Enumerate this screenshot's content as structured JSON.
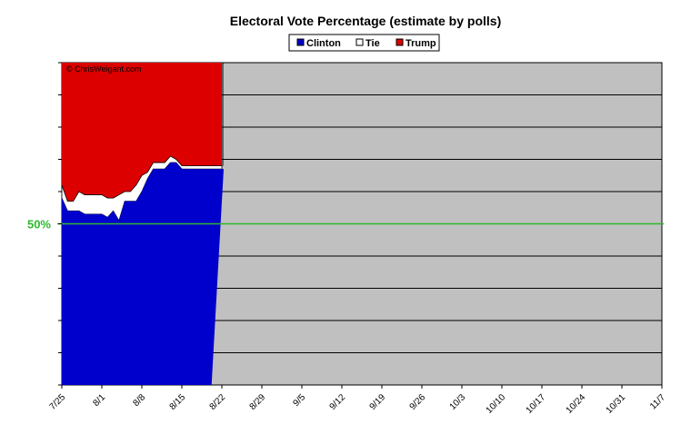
{
  "chart_data": {
    "type": "area",
    "title": "Electoral Vote Percentage (estimate by polls)",
    "watermark": "© ChrisWeigant.com",
    "reference_line": {
      "label": "50%",
      "value": 50,
      "color": "#2db82d"
    },
    "xlim": [
      "7/25",
      "11/7"
    ],
    "ylim": [
      0,
      100
    ],
    "grid": {
      "horizontal": true,
      "step": 10
    },
    "x_ticks": [
      "7/25",
      "8/1",
      "8/8",
      "8/15",
      "8/22",
      "8/29",
      "9/5",
      "9/12",
      "9/19",
      "9/26",
      "10/3",
      "10/10",
      "10/17",
      "10/24",
      "10/31",
      "11/7"
    ],
    "legend": {
      "position": "top-center"
    },
    "plot_background": "#c0c0c0",
    "x_days": [
      0,
      1,
      2,
      3,
      4,
      5,
      6,
      7,
      8,
      9,
      10,
      11,
      12,
      13,
      14,
      15,
      16,
      17,
      18,
      19,
      20,
      21,
      22,
      23,
      24,
      25,
      26,
      27,
      28,
      29,
      30,
      31
    ],
    "x": [
      "7/25",
      "7/26",
      "7/27",
      "7/28",
      "7/29",
      "7/30",
      "7/31",
      "8/1",
      "8/2",
      "8/3",
      "8/4",
      "8/5",
      "8/6",
      "8/7",
      "8/8",
      "8/9",
      "8/10",
      "8/11",
      "8/12",
      "8/13",
      "8/14",
      "8/15",
      "8/16",
      "8/17",
      "8/18",
      "8/19",
      "8/20",
      "8/21",
      "8/22",
      "8/23",
      "8/24",
      "8/25"
    ],
    "series": [
      {
        "name": "Clinton",
        "color": "#0000cc",
        "values": [
          58,
          54,
          54,
          54,
          53,
          53,
          53,
          53,
          52,
          54,
          51,
          57,
          57,
          57,
          60,
          64,
          67,
          67,
          67,
          69,
          69,
          67,
          67,
          67,
          67,
          67,
          67,
          67,
          67,
          null,
          null,
          null
        ]
      },
      {
        "name": "Tie",
        "color": "#ffffff",
        "values": [
          4,
          3,
          3,
          6,
          6,
          6,
          6,
          6,
          6,
          4,
          8,
          3,
          3,
          5,
          5,
          2,
          2,
          2,
          2,
          2,
          1,
          1,
          1,
          1,
          1,
          1,
          1,
          1,
          1,
          null,
          null,
          null
        ]
      },
      {
        "name": "Trump",
        "color": "#dd0000",
        "values": [
          38,
          43,
          43,
          40,
          41,
          41,
          41,
          41,
          42,
          42,
          41,
          40,
          40,
          38,
          35,
          34,
          31,
          31,
          31,
          29,
          30,
          32,
          32,
          32,
          32,
          32,
          32,
          32,
          32,
          null,
          null,
          null
        ]
      }
    ],
    "end_dropoff": {
      "clinton_top": 67,
      "to_x": 26.2
    }
  }
}
